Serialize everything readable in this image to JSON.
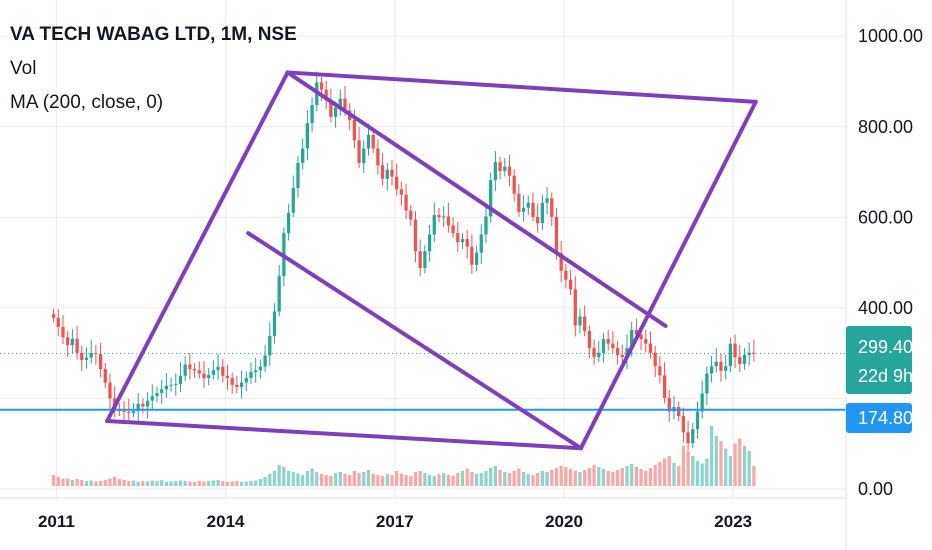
{
  "header": {
    "title": "VA TECH WABAG LTD, 1M, NSE",
    "vol_label": "Vol",
    "ma_label": "MA (200, close, 0)"
  },
  "colors": {
    "up": "#26a69a",
    "down": "#ef5350",
    "trendline": "#7e3fbf",
    "support": "#2196f3",
    "last_price_bg": "#26a69a",
    "support_tag_bg": "#2196f3",
    "grid": "#e9ebef"
  },
  "price_tags": {
    "last_price": "299.40",
    "countdown": "22d 9h",
    "support_price": "174.80"
  },
  "chart_data": {
    "type": "candlestick",
    "timeframe": "1M",
    "y_axis": {
      "ticks": [
        0,
        200,
        400,
        600,
        800,
        1000
      ],
      "tick_labels": [
        "0.00",
        "",
        "400.00",
        "600.00",
        "800.00",
        "1000.00"
      ],
      "range": [
        -20,
        1080
      ]
    },
    "x_axis": {
      "ticks": [
        2011,
        2014,
        2017,
        2020,
        2023
      ],
      "tick_labels": [
        "2011",
        "2014",
        "2017",
        "2020",
        "2023"
      ],
      "range": [
        2010.0,
        2025.0
      ]
    },
    "last_price": 299.4,
    "support_level": 174.8,
    "trendlines": [
      {
        "from": [
          2011.9,
          150
        ],
        "to": [
          2015.1,
          920
        ]
      },
      {
        "from": [
          2015.1,
          920
        ],
        "to": [
          2023.4,
          855
        ]
      },
      {
        "from": [
          2023.4,
          855
        ],
        "to": [
          2020.3,
          90
        ]
      },
      {
        "from": [
          2011.9,
          150
        ],
        "to": [
          2020.3,
          90
        ]
      },
      {
        "from": [
          2015.1,
          920
        ],
        "to": [
          2021.8,
          360
        ]
      },
      {
        "from": [
          2014.4,
          565
        ],
        "to": [
          2020.3,
          90
        ]
      }
    ],
    "closes": [
      378,
      358,
      335,
      318,
      332,
      300,
      285,
      290,
      300,
      298,
      265,
      235,
      200,
      175,
      172,
      170,
      168,
      172,
      188,
      182,
      195,
      205,
      212,
      220,
      228,
      230,
      232,
      250,
      275,
      265,
      262,
      255,
      245,
      252,
      262,
      270,
      250,
      245,
      230,
      225,
      235,
      245,
      258,
      262,
      270,
      295,
      338,
      392,
      470,
      565,
      610,
      665,
      720,
      752,
      808,
      848,
      898,
      882,
      858,
      822,
      842,
      862,
      836,
      815,
      770,
      720,
      752,
      782,
      752,
      715,
      685,
      705,
      690,
      662,
      650,
      615,
      595,
      525,
      488,
      525,
      562,
      605,
      600,
      602,
      582,
      565,
      545,
      552,
      535,
      495,
      522,
      562,
      602,
      682,
      722,
      702,
      712,
      692,
      652,
      612,
      621,
      632,
      601,
      587,
      632,
      642,
      601,
      521,
      482,
      462,
      441,
      361,
      381,
      349,
      311,
      291,
      301,
      331,
      321,
      311,
      296,
      291,
      311,
      351,
      341,
      331,
      321,
      301,
      271,
      251,
      201,
      171,
      181,
      161,
      125,
      101,
      132,
      171,
      211,
      255,
      271,
      281,
      261,
      271,
      321,
      291,
      276,
      296,
      301,
      299
    ],
    "volumes": [
      22,
      18,
      15,
      15,
      12,
      14,
      12,
      10,
      11,
      9,
      10,
      12,
      15,
      18,
      14,
      12,
      10,
      11,
      9,
      10,
      9,
      11,
      10,
      12,
      8,
      9,
      10,
      11,
      10,
      9,
      8,
      10,
      9,
      10,
      11,
      12,
      10,
      8,
      9,
      10,
      8,
      9,
      10,
      11,
      14,
      18,
      24,
      30,
      42,
      38,
      30,
      28,
      25,
      22,
      30,
      35,
      28,
      24,
      22,
      20,
      26,
      28,
      24,
      22,
      30,
      26,
      28,
      32,
      25,
      22,
      20,
      24,
      22,
      30,
      25,
      22,
      20,
      28,
      30,
      26,
      22,
      20,
      24,
      26,
      22,
      20,
      26,
      30,
      35,
      28,
      24,
      26,
      30,
      36,
      40,
      32,
      28,
      26,
      30,
      35,
      28,
      24,
      22,
      26,
      30,
      28,
      32,
      36,
      40,
      38,
      34,
      30,
      28,
      32,
      36,
      42,
      38,
      34,
      30,
      28,
      32,
      36,
      40,
      44,
      38,
      34,
      30,
      36,
      42,
      48,
      55,
      60,
      46,
      40,
      80,
      70,
      60,
      50,
      45,
      55,
      120,
      100,
      90,
      75,
      60,
      85,
      95,
      80,
      70,
      40
    ]
  }
}
